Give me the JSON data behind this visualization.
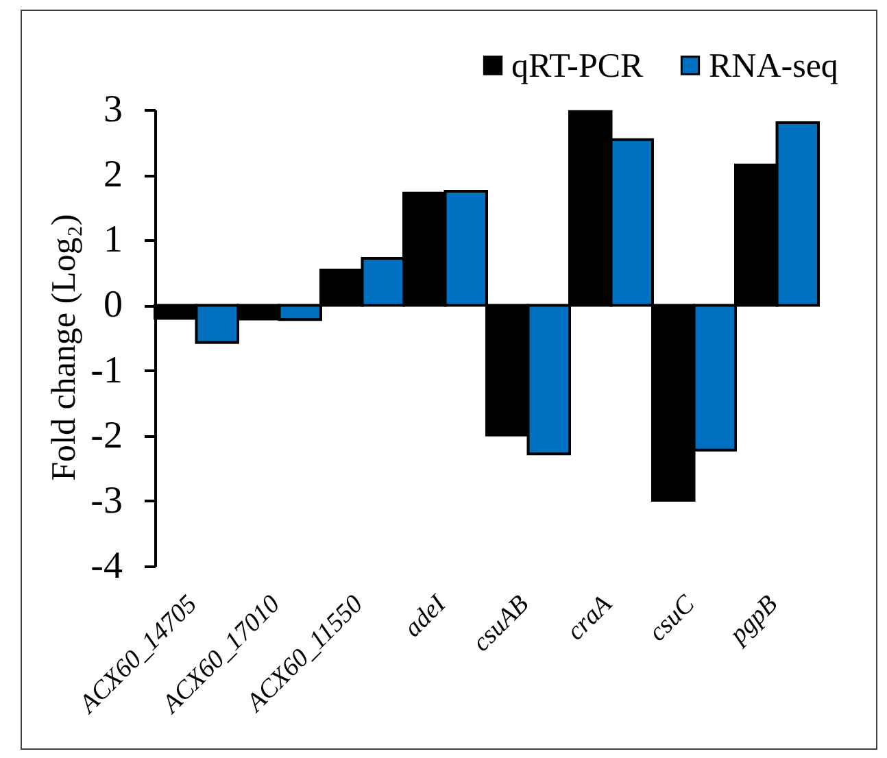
{
  "chart_data": {
    "type": "bar",
    "ylabel": "Fold change (Log₂)",
    "categories": [
      "ACX60_14705",
      "ACX60_17010",
      "ACX60_11550",
      "adeI",
      "csuAB",
      "craA",
      "csuC",
      "pgpB"
    ],
    "series": [
      {
        "name": "qRT-PCR",
        "color": "#000000",
        "values": [
          -0.2,
          -0.21,
          0.54,
          1.72,
          -1.99,
          2.97,
          -2.99,
          2.15
        ]
      },
      {
        "name": "RNA-seq",
        "color": "#0070c0",
        "values": [
          -0.57,
          -0.22,
          0.72,
          1.75,
          -2.28,
          2.54,
          -2.22,
          2.8
        ]
      }
    ],
    "ylim": [
      -4,
      3
    ],
    "yticks": [
      -4,
      -3,
      -2,
      -1,
      0,
      1,
      2,
      3
    ],
    "grid": false,
    "legend": "top right"
  }
}
